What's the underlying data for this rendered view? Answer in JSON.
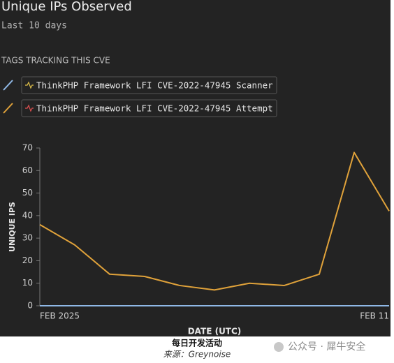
{
  "chart_data": {
    "type": "line",
    "title": "Unique IPs Observed",
    "subtitle": "Last 10 days",
    "legend_title": "TAGS TRACKING THIS CVE",
    "categories": [
      "FEB 2025",
      null,
      null,
      null,
      null,
      null,
      null,
      null,
      null,
      null,
      "FEB 11"
    ],
    "series": [
      {
        "name": "ThinkPHP Framework LFI CVE-2022-47945 Scanner",
        "color": "#8fb8e6",
        "values": [
          0,
          0,
          0,
          0,
          0,
          0,
          0,
          0,
          0,
          0,
          0
        ]
      },
      {
        "name": "ThinkPHP Framework LFI CVE-2022-47945 Attempt",
        "color": "#e0a23a",
        "values": [
          36,
          27,
          14,
          13,
          9,
          7,
          10,
          9,
          14,
          68,
          42
        ]
      }
    ],
    "x_label": "DATE (UTC)",
    "y_label": "UNIQUE IPS",
    "ylim": [
      0,
      70
    ],
    "yticks": [
      0,
      10,
      20,
      30,
      40,
      50,
      60,
      70
    ]
  },
  "footer": {
    "caption": "每日开发活动",
    "source": "来源：Greynoise",
    "watermark": "公众号 · 犀牛安全"
  }
}
